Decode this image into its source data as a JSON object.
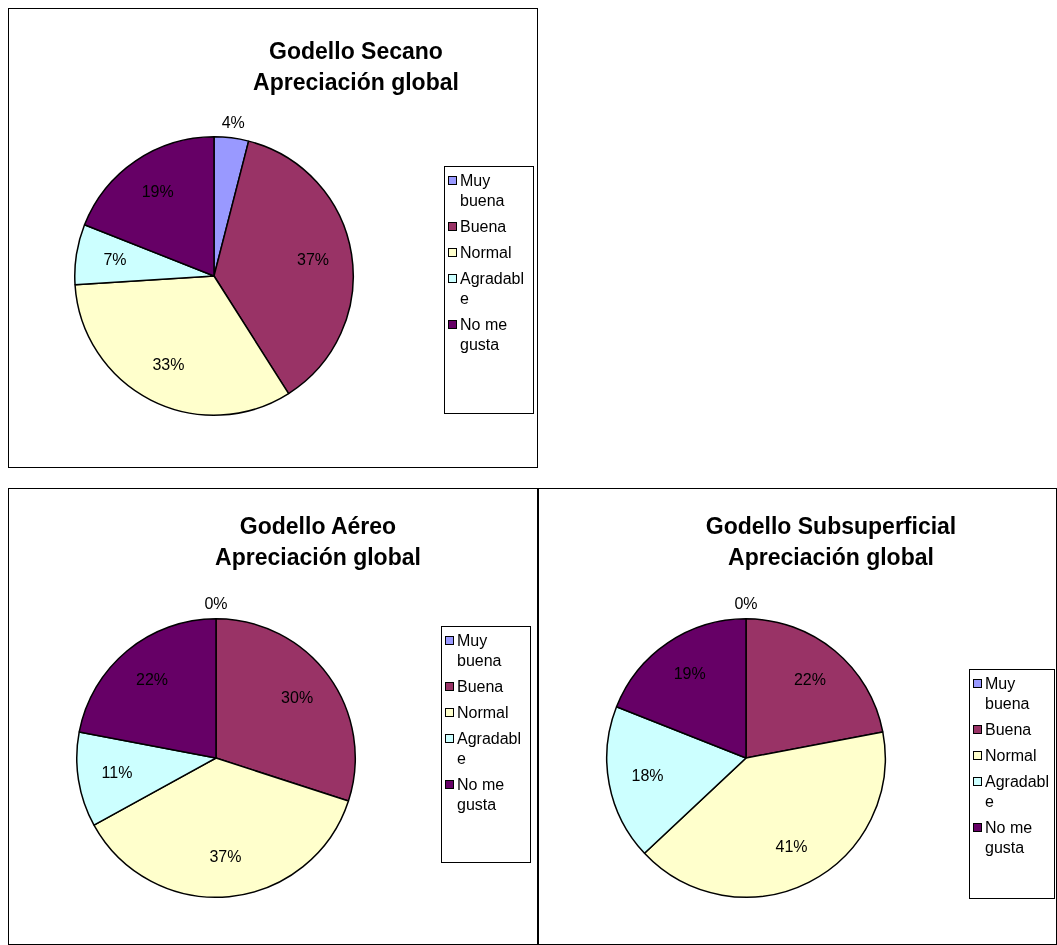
{
  "chart_data": [
    {
      "type": "pie",
      "title": "Godello Secano\nApreciación global",
      "categories": [
        "Muy buena",
        "Buena",
        "Normal",
        "Agradable",
        "No me gusta"
      ],
      "values": [
        4,
        37,
        33,
        7,
        19
      ],
      "value_labels": [
        "4%",
        "37%",
        "33%",
        "7%",
        "19%"
      ],
      "colors": [
        "#9999ff",
        "#993366",
        "#ffffcc",
        "#ccffff",
        "#660066"
      ],
      "legend": "right"
    },
    {
      "type": "pie",
      "title": "Godello Aéreo\nApreciación global",
      "categories": [
        "Muy buena",
        "Buena",
        "Normal",
        "Agradable",
        "No me gusta"
      ],
      "values": [
        0,
        30,
        37,
        11,
        22
      ],
      "value_labels": [
        "0%",
        "30%",
        "37%",
        "11%",
        "22%"
      ],
      "colors": [
        "#9999ff",
        "#993366",
        "#ffffcc",
        "#ccffff",
        "#660066"
      ],
      "legend": "right"
    },
    {
      "type": "pie",
      "title": "Godello Subsuperficial\nApreciación global",
      "categories": [
        "Muy buena",
        "Buena",
        "Normal",
        "Agradable",
        "No me gusta"
      ],
      "values": [
        0,
        22,
        41,
        18,
        19
      ],
      "value_labels": [
        "0%",
        "22%",
        "41%",
        "18%",
        "19%"
      ],
      "colors": [
        "#9999ff",
        "#993366",
        "#ffffcc",
        "#ccffff",
        "#660066"
      ],
      "legend": "right"
    }
  ]
}
